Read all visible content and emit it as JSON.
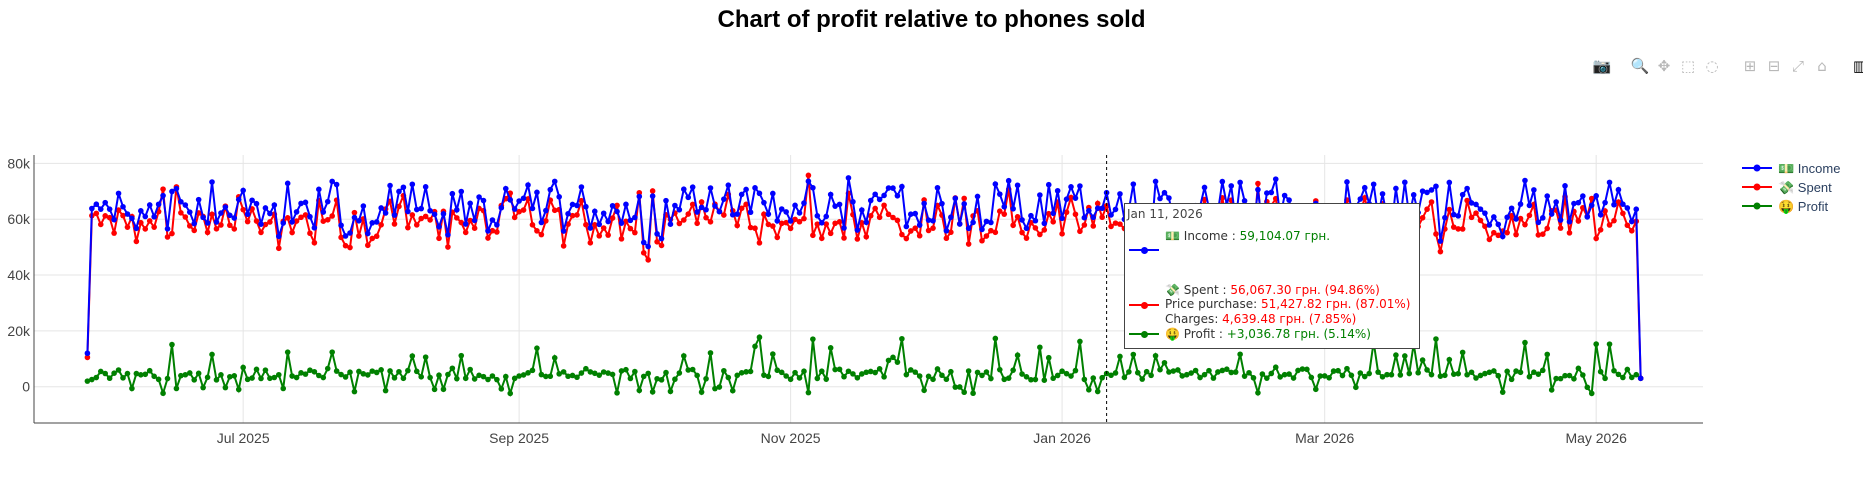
{
  "title": "Chart of profit relative to phones sold",
  "modebar": {
    "icons": [
      "camera-icon",
      "zoom-icon",
      "pan-icon",
      "box-select-icon",
      "lasso-icon",
      "zoom-in-icon",
      "zoom-out-icon",
      "autoscale-icon",
      "reset-axes-icon",
      "plotly-logo-icon"
    ]
  },
  "colors": {
    "income": "#0000ff",
    "spent": "#ff0000",
    "profit": "#008000"
  },
  "legend": [
    {
      "key": "income",
      "icon": "💵",
      "label": "Income"
    },
    {
      "key": "spent",
      "icon": "💸",
      "label": "Spent"
    },
    {
      "key": "profit",
      "icon": "🤑",
      "label": "Profit"
    }
  ],
  "tooltip": {
    "date": "Jan 11, 2026",
    "income_label": "Income : ",
    "income_value": "59,104.07 грн.",
    "spent_label": "Spent : ",
    "spent_value": "56,067.30 грн. (94.86%)",
    "price_label": "Price purchase: ",
    "price_value": "51,427.82 грн. (87.01%)",
    "charges_label": "Charges: ",
    "charges_value": "4,639.48 грн. (7.85%)",
    "profit_label": "Profit : ",
    "profit_value": "+3,036.78 грн. (5.14%)"
  },
  "chart_data": {
    "type": "line",
    "x_start": "2025-05-27",
    "x_end": "2026-05-11",
    "xlim": [
      "2025-05-15",
      "2026-05-25"
    ],
    "ylim": [
      -13000,
      83000
    ],
    "y_ticks": [
      0,
      20000,
      40000,
      60000,
      80000
    ],
    "y_tick_labels": [
      "0",
      "20k",
      "40k",
      "60k",
      "80k"
    ],
    "x_ticks": [
      "2025-07-01",
      "2025-09-01",
      "2025-11-01",
      "2026-01-01",
      "2026-03-01",
      "2026-05-01"
    ],
    "x_tick_labels": [
      "Jul 2025",
      "Sep 2025",
      "Nov 2025",
      "Jan 2026",
      "Mar 2026",
      "May 2026"
    ],
    "hover_x": "2026-01-11",
    "grid": true,
    "legend_position": "right",
    "series": [
      {
        "name": "Income",
        "key": "income",
        "first": 12000,
        "last": 3000,
        "base": 63000,
        "amp": 5000
      },
      {
        "name": "Spent",
        "key": "spent",
        "first": 10500,
        "last": 3000,
        "base": 57500,
        "amp": 3500
      },
      {
        "name": "Profit",
        "key": "profit",
        "first": 2000,
        "last": 3000,
        "base": 5500,
        "amp": 5000
      }
    ]
  }
}
